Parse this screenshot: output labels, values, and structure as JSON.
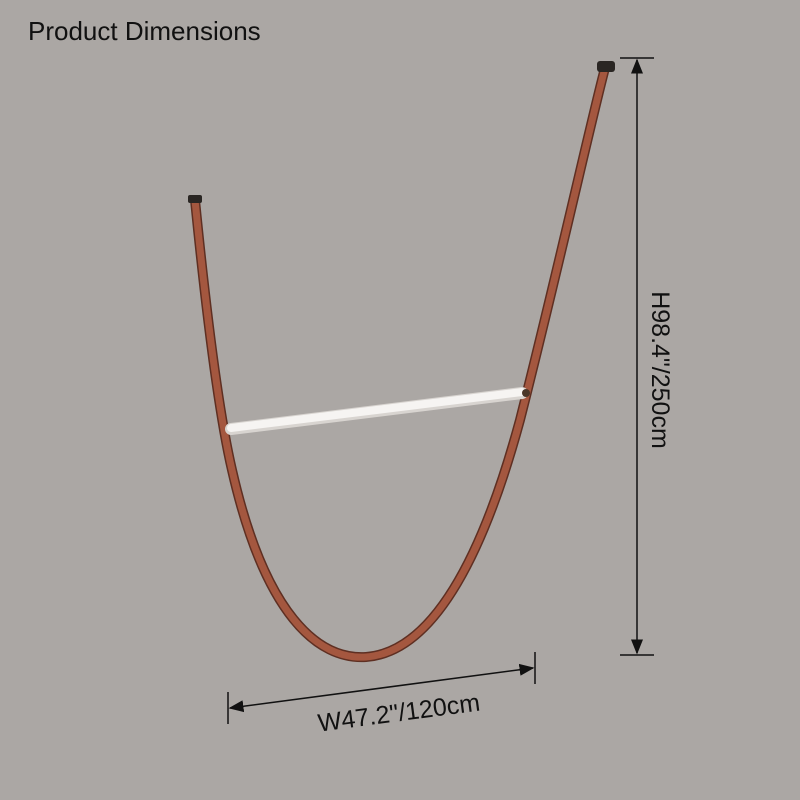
{
  "header": {
    "title": "Product Dimensions"
  },
  "dimensions": {
    "width": "W47.2\"/120cm",
    "height": "H98.4\"/250cm"
  }
}
